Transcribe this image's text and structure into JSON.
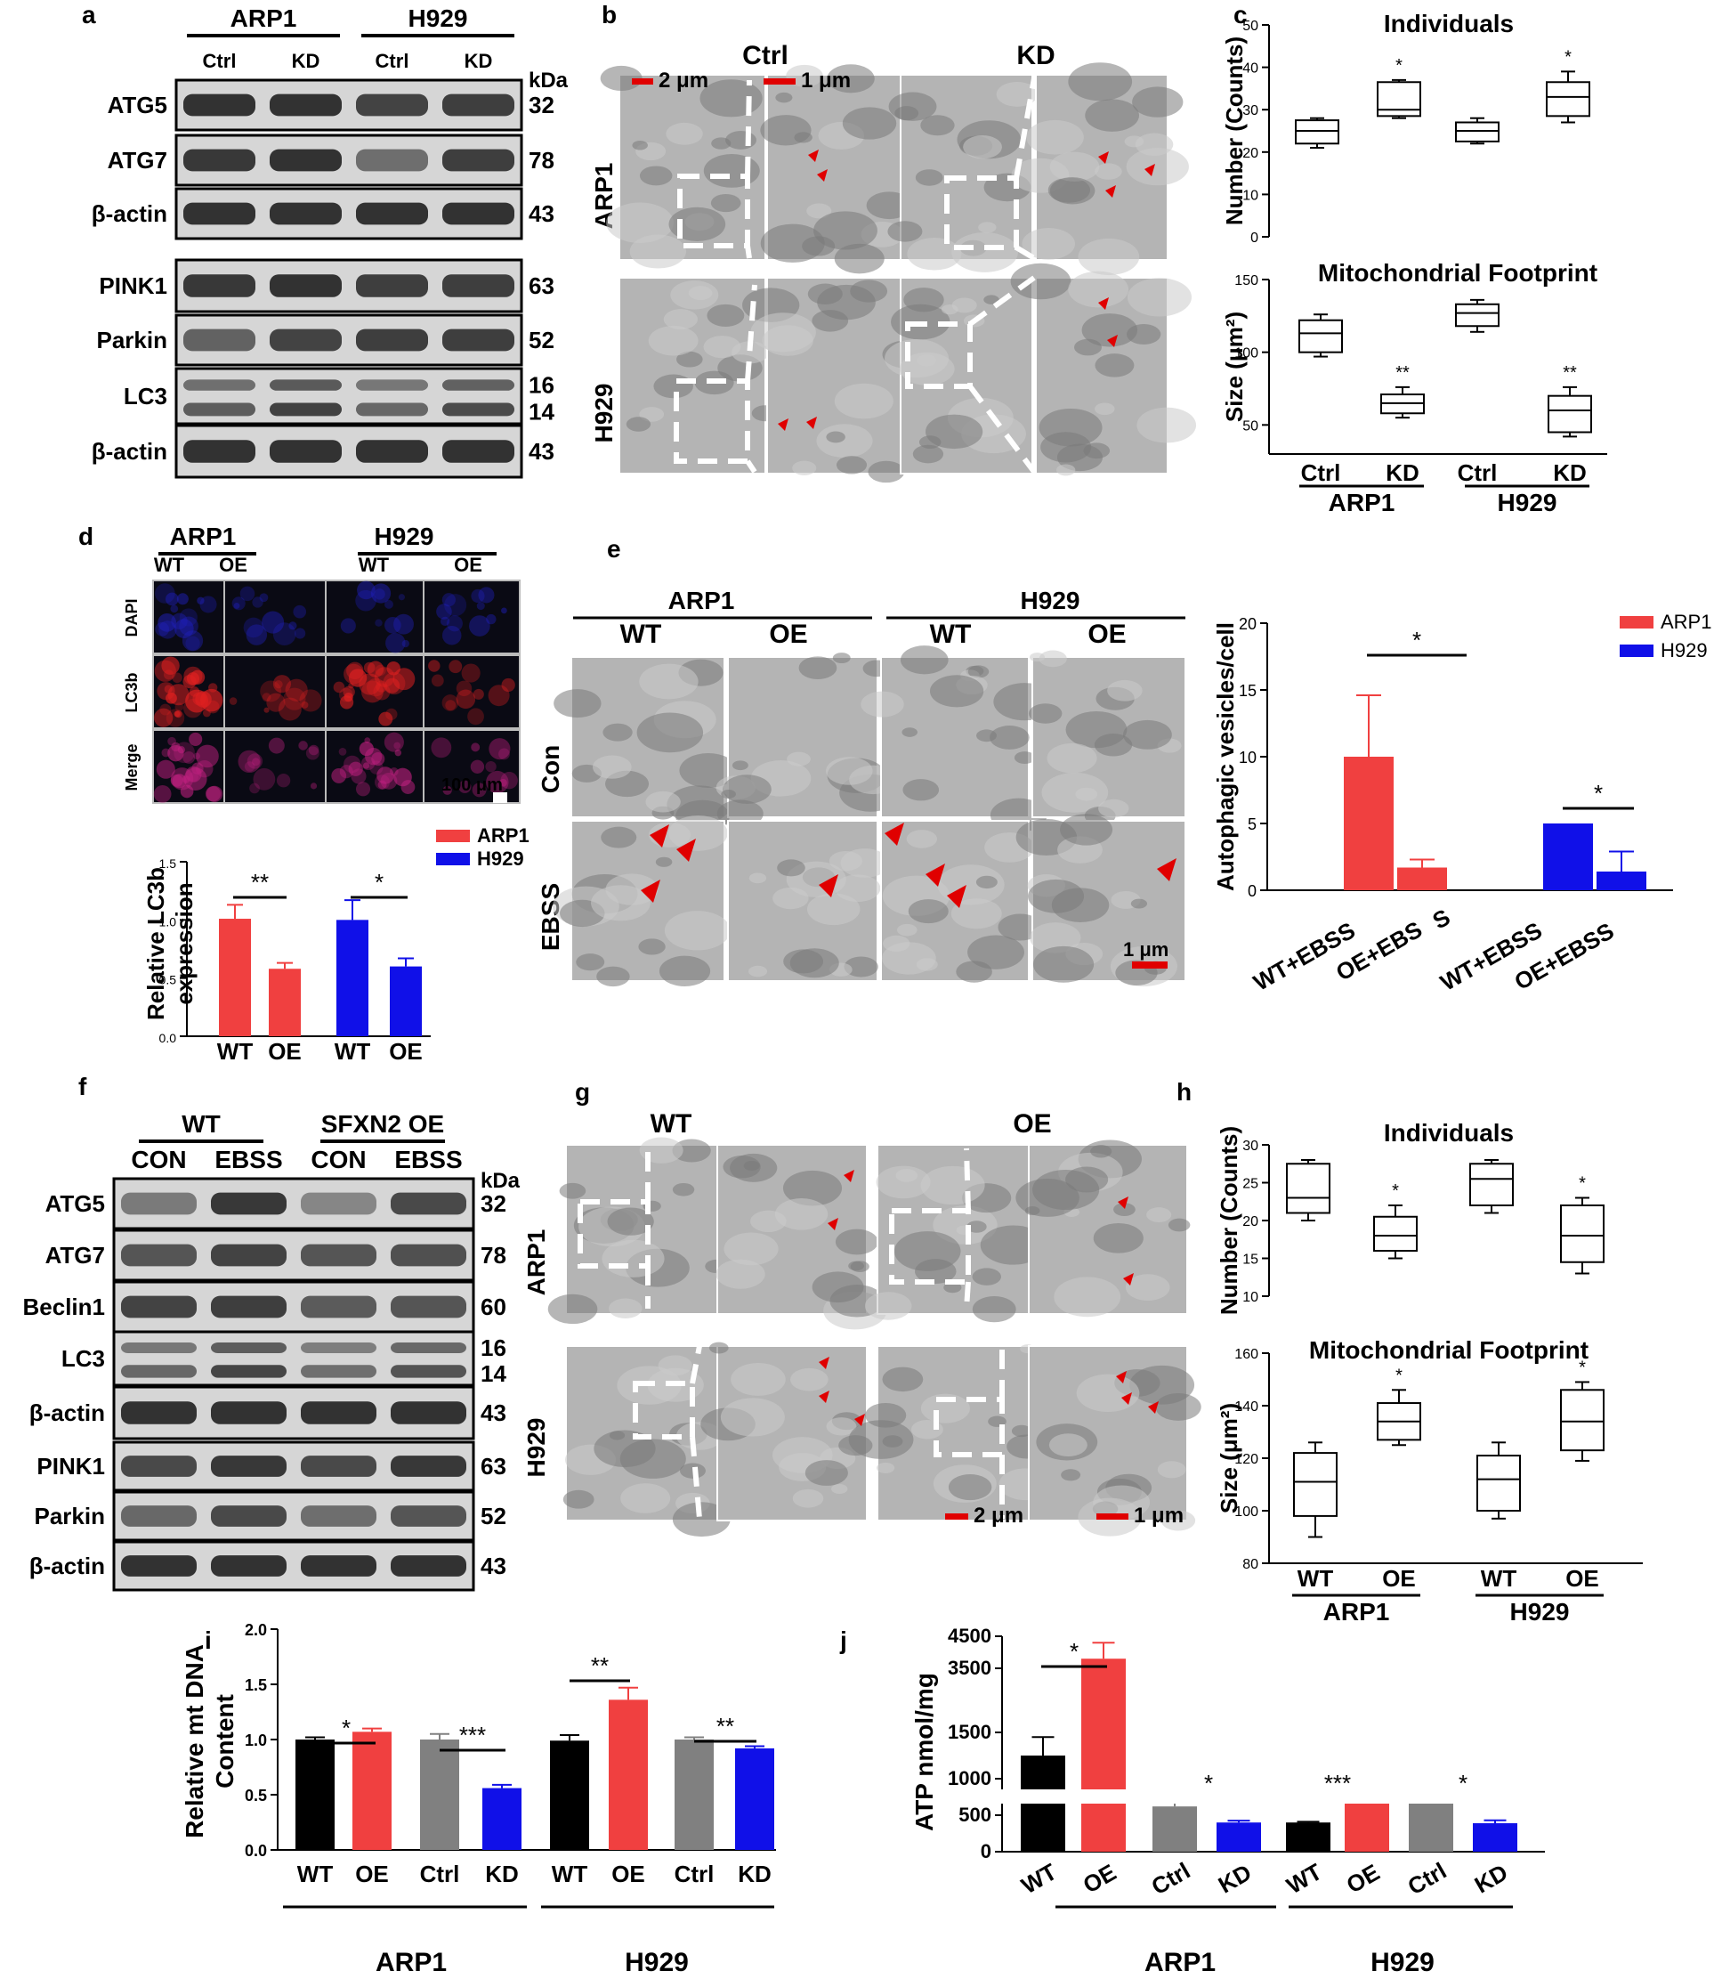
{
  "panels": {
    "a": "a",
    "b": "b",
    "c": "c",
    "d": "d",
    "e": "e",
    "f": "f",
    "g": "g",
    "h": "h",
    "i": "i",
    "j": "j"
  },
  "colors": {
    "arp1": "#f04040",
    "h929": "#1010e8",
    "wt": "#000000",
    "ctrl": "#808080",
    "blot_bg": "#d6d6d6",
    "band": "#1c1c1c",
    "em_bg": "#b0b0b0",
    "scale_bar": "#e00000"
  },
  "a": {
    "groups": [
      "ARP1",
      "H929"
    ],
    "lanes": [
      "Ctrl",
      "KD",
      "Ctrl",
      "KD"
    ],
    "kda_label": "kDa",
    "rows": [
      {
        "name": "ATG5",
        "kda": "32"
      },
      {
        "name": "ATG7",
        "kda": "78"
      },
      {
        "name": "β-actin",
        "kda": "43"
      },
      {
        "name": "PINK1",
        "kda": "63"
      },
      {
        "name": "Parkin",
        "kda": "52"
      },
      {
        "name": "LC3",
        "kda": "16",
        "kda2": "14"
      },
      {
        "name": "β-actin",
        "kda": "43"
      }
    ]
  },
  "b": {
    "cols": [
      "Ctrl",
      "KD"
    ],
    "rows": [
      "ARP1",
      "H929"
    ],
    "scale1": "2 μm",
    "scale2": "1 μm"
  },
  "c": {
    "top_title": "Individuals",
    "top_ylabel": "Number (Counts)",
    "top_yticks": [
      "0",
      "10",
      "20",
      "30",
      "40",
      "50"
    ],
    "bottom_title": "Mitochondrial Footprint",
    "bottom_ylabel": "Size  (μm²)",
    "bottom_yticks": [
      "50",
      "100",
      "150"
    ],
    "xlabels": [
      "Ctrl",
      "KD",
      "Ctrl",
      "KD"
    ],
    "groups": [
      "ARP1",
      "H929"
    ],
    "top_sig": [
      "",
      "*",
      "",
      "*"
    ],
    "bottom_sig": [
      "",
      "**",
      "",
      "**"
    ]
  },
  "d": {
    "groups": [
      "ARP1",
      "H929"
    ],
    "cols": [
      "WT",
      "OE",
      "WT",
      "OE"
    ],
    "rows": [
      "DAPI",
      "LC3b",
      "Merge"
    ],
    "scale": "100 μm",
    "legend": [
      "ARP1",
      "H929"
    ],
    "ylabel1": "Relative LC3b",
    "ylabel2": "expression",
    "yticks": [
      "0.0",
      "0.5",
      "1.0",
      "1.5"
    ],
    "xlabels": [
      "WT",
      "OE",
      "WT",
      "OE"
    ],
    "sig": [
      "**",
      "*"
    ]
  },
  "e": {
    "groups": [
      "ARP1",
      "H929"
    ],
    "cols": [
      "WT",
      "OE",
      "WT",
      "OE"
    ],
    "rows": [
      "Con",
      "EBSS"
    ],
    "scale": "1 μm",
    "legend": [
      "ARP1",
      "H929"
    ],
    "ylabel": "Autophagic vesicles/cell",
    "yticks": [
      "0",
      "5",
      "10",
      "15",
      "20"
    ],
    "xlabels": [
      "WT+EBSS",
      "OE+EBS",
      "S",
      "WT+EBSS",
      "OE+EBSS"
    ],
    "sig": [
      "*",
      "*"
    ]
  },
  "f": {
    "groups": [
      "WT",
      "SFXN2 OE"
    ],
    "lanes": [
      "CON",
      "EBSS",
      "CON",
      "EBSS"
    ],
    "kda_label": "kDa",
    "rows": [
      {
        "name": "ATG5",
        "kda": "32"
      },
      {
        "name": "ATG7",
        "kda": "78"
      },
      {
        "name": "Beclin1",
        "kda": "60"
      },
      {
        "name": "LC3",
        "kda": "16",
        "kda2": "14"
      },
      {
        "name": "β-actin",
        "kda": "43"
      },
      {
        "name": "PINK1",
        "kda": "63"
      },
      {
        "name": "Parkin",
        "kda": "52"
      },
      {
        "name": "β-actin",
        "kda": "43"
      }
    ]
  },
  "g": {
    "cols": [
      "WT",
      "OE"
    ],
    "rows": [
      "ARP1",
      "H929"
    ],
    "scale1": "2 μm",
    "scale2": "1 μm"
  },
  "h": {
    "top_title": "Individuals",
    "top_ylabel": "Number (Counts)",
    "top_yticks": [
      "10",
      "15",
      "20",
      "25",
      "30"
    ],
    "bottom_title": "Mitochondrial Footprint",
    "bottom_ylabel": "Size (μm²)",
    "bottom_yticks": [
      "80",
      "100",
      "120",
      "140",
      "160"
    ],
    "xlabels": [
      "WT",
      "OE",
      "WT",
      "OE"
    ],
    "groups": [
      "ARP1",
      "H929"
    ],
    "top_sig": [
      "",
      "*",
      "",
      "*"
    ],
    "bottom_sig": [
      "",
      "*",
      "",
      "*"
    ]
  },
  "i": {
    "ylabel1": "Relative mt DNA",
    "ylabel2": "Content",
    "yticks": [
      "0.0",
      "0.5",
      "1.0",
      "1.5",
      "2.0"
    ],
    "xlabels": [
      "WT",
      "OE",
      "Ctrl",
      "KD",
      "WT",
      "OE",
      "Ctrl",
      "KD"
    ],
    "groups": [
      "ARP1",
      "H929"
    ],
    "sig": [
      "*",
      "***",
      "**",
      "**"
    ]
  },
  "j": {
    "ylabel": "ATP nmol/mg",
    "yticks_lower": [
      "0",
      "500",
      "1000"
    ],
    "yticks_upper": [
      "1500",
      "3500",
      "4500"
    ],
    "xlabels": [
      "WT",
      "OE",
      "Ctrl",
      "KD",
      "WT",
      "OE",
      "Ctrl",
      "KD"
    ],
    "groups": [
      "ARP1",
      "H929"
    ],
    "sig": [
      "*",
      "*",
      "***",
      "*"
    ]
  },
  "chart_data": [
    {
      "id": "c-top",
      "type": "box",
      "title": "Individuals",
      "ylabel": "Number (Counts)",
      "ylim": [
        0,
        50
      ],
      "categories": [
        "Ctrl",
        "KD",
        "Ctrl",
        "KD"
      ],
      "boxes": [
        {
          "min": 21,
          "q1": 22,
          "median": 25,
          "q3": 27.5,
          "max": 28
        },
        {
          "min": 28,
          "q1": 28.5,
          "median": 30,
          "q3": 36.5,
          "max": 37
        },
        {
          "min": 22,
          "q1": 22.5,
          "median": 25,
          "q3": 27,
          "max": 28
        },
        {
          "min": 27,
          "q1": 28.5,
          "median": 33,
          "q3": 36.5,
          "max": 39
        }
      ]
    },
    {
      "id": "c-bottom",
      "type": "box",
      "title": "Mitochondrial Footprint",
      "ylabel": "Size  (μm²)",
      "ylim": [
        30,
        150
      ],
      "categories": [
        "Ctrl",
        "KD",
        "Ctrl",
        "KD"
      ],
      "boxes": [
        {
          "min": 97,
          "q1": 100,
          "median": 113,
          "q3": 122,
          "max": 126
        },
        {
          "min": 55,
          "q1": 58,
          "median": 65,
          "q3": 71,
          "max": 76
        },
        {
          "min": 114,
          "q1": 118,
          "median": 127,
          "q3": 133,
          "max": 136
        },
        {
          "min": 42,
          "q1": 45,
          "median": 60,
          "q3": 70,
          "max": 76
        }
      ]
    },
    {
      "id": "d-bar",
      "type": "bar",
      "ylabel": "Relative LC3b expression",
      "ylim": [
        0,
        1.5
      ],
      "categories": [
        "WT",
        "OE",
        "WT",
        "OE"
      ],
      "values": [
        1.01,
        0.58,
        1.0,
        0.6
      ],
      "errors": [
        0.12,
        0.05,
        0.17,
        0.07
      ],
      "series_colors": [
        "arp1",
        "arp1",
        "h929",
        "h929"
      ]
    },
    {
      "id": "e-bar",
      "type": "bar",
      "ylabel": "Autophagic vesicles/cell",
      "ylim": [
        0,
        20
      ],
      "categories": [
        "WT+EBSS",
        "OE+EBSS",
        "WT+EBSS",
        "OE+EBSS"
      ],
      "values": [
        10,
        1.7,
        5,
        1.4
      ],
      "errors": [
        4.6,
        0.6,
        0,
        1.5
      ],
      "series_colors": [
        "arp1",
        "arp1",
        "h929",
        "h929"
      ]
    },
    {
      "id": "h-top",
      "type": "box",
      "title": "Individuals",
      "ylabel": "Number (Counts)",
      "ylim": [
        10,
        30
      ],
      "categories": [
        "WT",
        "OE",
        "WT",
        "OE"
      ],
      "boxes": [
        {
          "min": 20,
          "q1": 21,
          "median": 23,
          "q3": 27.5,
          "max": 28
        },
        {
          "min": 15,
          "q1": 16,
          "median": 18,
          "q3": 20.5,
          "max": 22
        },
        {
          "min": 21,
          "q1": 22,
          "median": 25.5,
          "q3": 27.5,
          "max": 28
        },
        {
          "min": 13,
          "q1": 14.5,
          "median": 18,
          "q3": 22,
          "max": 23
        }
      ]
    },
    {
      "id": "h-bottom",
      "type": "box",
      "title": "Mitochondrial Footprint",
      "ylabel": "Size (μm²)",
      "ylim": [
        80,
        160
      ],
      "categories": [
        "WT",
        "OE",
        "WT",
        "OE"
      ],
      "boxes": [
        {
          "min": 90,
          "q1": 98,
          "median": 111,
          "q3": 122,
          "max": 126
        },
        {
          "min": 125,
          "q1": 127,
          "median": 134,
          "q3": 141,
          "max": 146
        },
        {
          "min": 97,
          "q1": 100,
          "median": 112,
          "q3": 121,
          "max": 126
        },
        {
          "min": 119,
          "q1": 123,
          "median": 134,
          "q3": 146,
          "max": 149
        }
      ]
    },
    {
      "id": "i-bar",
      "type": "bar",
      "ylabel": "Relative mt DNA Content",
      "ylim": [
        0,
        2.0
      ],
      "categories": [
        "WT",
        "OE",
        "Ctrl",
        "KD",
        "WT",
        "OE",
        "Ctrl",
        "KD"
      ],
      "values": [
        1.0,
        1.07,
        1.0,
        0.56,
        0.99,
        1.36,
        1.0,
        0.92
      ],
      "errors": [
        0.02,
        0.03,
        0.05,
        0.03,
        0.05,
        0.11,
        0.02,
        0.02
      ],
      "series_colors": [
        "wt",
        "arp1",
        "ctrl",
        "h929",
        "wt",
        "arp1",
        "ctrl",
        "h929"
      ]
    },
    {
      "id": "j-bar",
      "type": "bar",
      "ylabel": "ATP nmol/mg",
      "ylim": [
        0,
        4500
      ],
      "axis_break": [
        1000,
        1500
      ],
      "categories": [
        "WT",
        "OE",
        "Ctrl",
        "KD",
        "WT",
        "OE",
        "Ctrl",
        "KD"
      ],
      "values": [
        1250,
        3800,
        620,
        400,
        400,
        730,
        740,
        390
      ],
      "errors": [
        200,
        500,
        60,
        25,
        10,
        15,
        70,
        40
      ],
      "series_colors": [
        "wt",
        "arp1",
        "ctrl",
        "h929",
        "wt",
        "arp1",
        "ctrl",
        "h929"
      ]
    }
  ]
}
